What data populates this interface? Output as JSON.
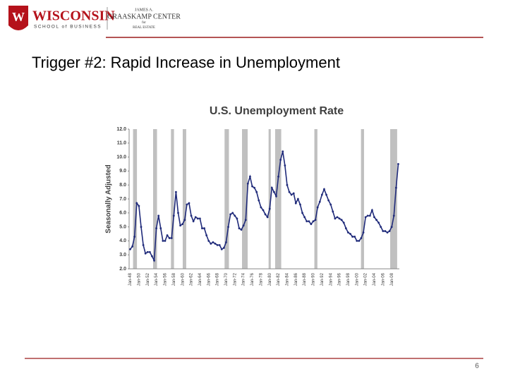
{
  "slide": {
    "logo_main": "WISCONSIN",
    "logo_sub": "SCHOOL of BUSINESS",
    "center_line1": "JAMES A.",
    "center_line2": "GRAASKAMP CENTER",
    "center_line3": "for",
    "center_line4": "REAL ESTATE",
    "title": "Trigger #2:  Rapid Increase in Unemployment",
    "page_number": "6"
  },
  "chart_data": {
    "type": "line",
    "title": "U.S. Unemployment Rate",
    "y_label": "Seasonally Adjusted",
    "categories": [
      "Jan-48",
      null,
      null,
      null,
      "Jan-50",
      null,
      null,
      null,
      "Jan-52",
      null,
      null,
      null,
      "Jan-54",
      null,
      null,
      null,
      "Jan-56",
      null,
      null,
      null,
      "Jan-58",
      null,
      null,
      null,
      "Jan-60",
      null,
      null,
      null,
      "Jan-62",
      null,
      null,
      null,
      "Jan-64",
      null,
      null,
      null,
      "Jan-66",
      null,
      null,
      null,
      "Jan-68",
      null,
      null,
      null,
      "Jan-70",
      null,
      null,
      null,
      "Jan-72",
      null,
      null,
      null,
      "Jan-74",
      null,
      null,
      null,
      "Jan-76",
      null,
      null,
      null,
      "Jan-78",
      null,
      null,
      null,
      "Jan-80",
      null,
      null,
      null,
      "Jan-82",
      null,
      null,
      null,
      "Jan-84",
      null,
      null,
      null,
      "Jan-86",
      null,
      null,
      null,
      "Jan-88",
      null,
      null,
      null,
      "Jan-90",
      null,
      null,
      null,
      "Jan-92",
      null,
      null,
      null,
      "Jan-94",
      null,
      null,
      null,
      "Jan-96",
      null,
      null,
      null,
      "Jan-98",
      null,
      null,
      null,
      "Jan-00",
      null,
      null,
      null,
      "Jan-02",
      null,
      null,
      null,
      "Jan-04",
      null,
      null,
      null,
      "Jan-06",
      null,
      null,
      null,
      "Jan-08",
      null,
      null,
      null
    ],
    "series": [
      {
        "name": "Unemployment rate",
        "color": "#1f2a7a",
        "values": [
          3.4,
          3.6,
          4.3,
          6.7,
          6.5,
          5.0,
          3.7,
          3.1,
          3.2,
          3.2,
          2.9,
          2.6,
          4.9,
          5.8,
          4.9,
          4.0,
          4.0,
          4.4,
          4.2,
          4.2,
          5.8,
          7.5,
          6.0,
          5.1,
          5.2,
          5.5,
          6.6,
          6.7,
          5.8,
          5.4,
          5.7,
          5.6,
          5.6,
          4.9,
          4.9,
          4.4,
          4.0,
          3.8,
          3.9,
          3.8,
          3.7,
          3.7,
          3.4,
          3.5,
          3.9,
          5.0,
          5.9,
          6.0,
          5.8,
          5.6,
          4.9,
          4.8,
          5.1,
          5.5,
          8.1,
          8.6,
          7.9,
          7.8,
          7.5,
          6.9,
          6.4,
          6.2,
          5.9,
          5.7,
          6.3,
          7.8,
          7.5,
          7.2,
          8.6,
          9.8,
          10.4,
          9.4,
          8.0,
          7.5,
          7.3,
          7.4,
          6.7,
          7.0,
          6.6,
          6.0,
          5.7,
          5.4,
          5.4,
          5.2,
          5.4,
          5.5,
          6.4,
          6.8,
          7.3,
          7.7,
          7.3,
          6.9,
          6.6,
          6.1,
          5.6,
          5.7,
          5.6,
          5.5,
          5.3,
          4.9,
          4.6,
          4.5,
          4.3,
          4.3,
          4.0,
          4.0,
          4.2,
          4.6,
          5.7,
          5.8,
          5.8,
          6.2,
          5.7,
          5.5,
          5.3,
          5.0,
          4.7,
          4.7,
          4.6,
          4.7,
          5.0,
          5.8,
          7.8,
          9.5
        ]
      }
    ],
    "shaded_periods": {
      "color": "#c0c0c0",
      "periods": [
        [
          1948.9,
          1949.8
        ],
        [
          1953.5,
          1954.4
        ],
        [
          1957.6,
          1958.3
        ],
        [
          1960.3,
          1961.1
        ],
        [
          1969.9,
          1970.9
        ],
        [
          1973.9,
          1975.2
        ],
        [
          1980.0,
          1980.5
        ],
        [
          1981.5,
          1982.9
        ],
        [
          1990.5,
          1991.2
        ],
        [
          2001.2,
          2001.9
        ],
        [
          2007.9,
          2009.5
        ]
      ]
    },
    "ylim": [
      2,
      12
    ],
    "yticks": [
      {
        "value": 2,
        "label": "2.0"
      },
      {
        "value": 3,
        "label": "3.0"
      },
      {
        "value": 4,
        "label": "4.0"
      },
      {
        "value": 5,
        "label": "5.0"
      },
      {
        "value": 6,
        "label": "6.0"
      },
      {
        "value": 7,
        "label": "7.0"
      },
      {
        "value": 8,
        "label": "8.0"
      },
      {
        "value": 9,
        "label": "9.0"
      },
      {
        "value": 10,
        "label": "10.0"
      },
      {
        "value": 11,
        "label": "11.0"
      },
      {
        "value": 12,
        "label": "12.0"
      }
    ],
    "grid": false
  }
}
